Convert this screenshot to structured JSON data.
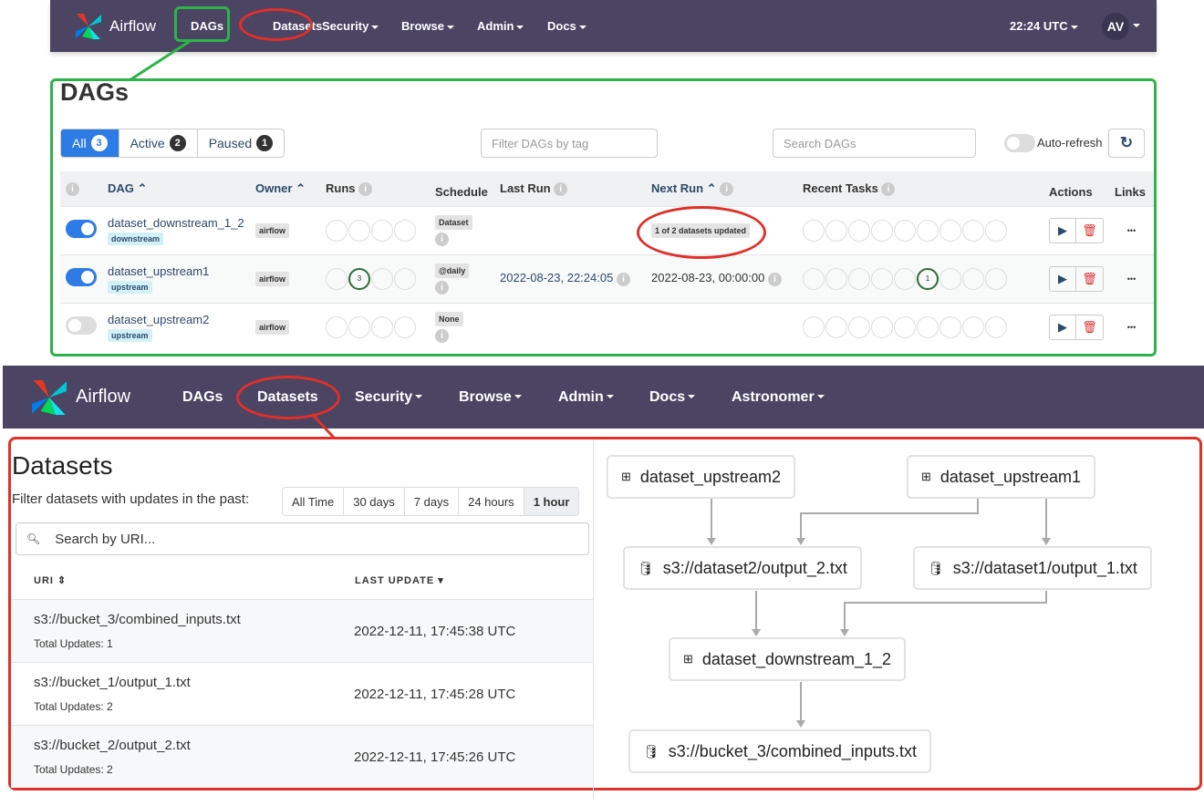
{
  "top_nav": {
    "brand": "Airflow",
    "items": [
      "DAGs",
      "Datasets",
      "Security",
      "Browse",
      "Admin",
      "Docs"
    ],
    "time": "22:24 UTC",
    "avatar": "AV"
  },
  "dags": {
    "title": "DAGs",
    "filters": [
      {
        "label": "All",
        "count": "3"
      },
      {
        "label": "Active",
        "count": "2"
      },
      {
        "label": "Paused",
        "count": "1"
      }
    ],
    "tag_placeholder": "Filter DAGs by tag",
    "search_placeholder": "Search DAGs",
    "auto_refresh": "Auto-refresh",
    "columns": [
      "DAG",
      "Owner",
      "Runs",
      "Schedule",
      "Last Run",
      "Next Run",
      "Recent Tasks",
      "Actions",
      "Links"
    ],
    "rows": [
      {
        "name": "dataset_downstream_1_2",
        "tag": "downstream",
        "owner": "airflow",
        "schedule": "Dataset",
        "last_run": "",
        "next_run": "1 of 2 datasets updated",
        "active": true,
        "runs_badge": "",
        "tasks_badge": ""
      },
      {
        "name": "dataset_upstream1",
        "tag": "upstream",
        "owner": "airflow",
        "schedule": "@daily",
        "last_run": "2022-08-23, 22:24:05",
        "next_run": "2022-08-23, 00:00:00",
        "active": true,
        "runs_badge": "3",
        "tasks_badge": "1"
      },
      {
        "name": "dataset_upstream2",
        "tag": "upstream",
        "owner": "airflow",
        "schedule": "None",
        "last_run": "",
        "next_run": "",
        "active": false,
        "runs_badge": "",
        "tasks_badge": ""
      }
    ],
    "more": "•••"
  },
  "second_nav": {
    "brand": "Airflow",
    "items": [
      "DAGs",
      "Datasets",
      "Security",
      "Browse",
      "Admin",
      "Docs",
      "Astronomer"
    ]
  },
  "datasets": {
    "title": "Datasets",
    "filter_label": "Filter datasets with updates in the past:",
    "time_filters": [
      "All Time",
      "30 days",
      "7 days",
      "24 hours",
      "1 hour"
    ],
    "search_placeholder": "Search by URI...",
    "columns": [
      "URI",
      "LAST UPDATE"
    ],
    "rows": [
      {
        "uri": "s3://bucket_3/combined_inputs.txt",
        "updates": "Total Updates: 1",
        "last_update": "2022-12-11, 17:45:38 UTC"
      },
      {
        "uri": "s3://bucket_1/output_1.txt",
        "updates": "Total Updates: 2",
        "last_update": "2022-12-11, 17:45:28 UTC"
      },
      {
        "uri": "s3://bucket_2/output_2.txt",
        "updates": "Total Updates: 2",
        "last_update": "2022-12-11, 17:45:26 UTC"
      }
    ],
    "graph": {
      "nodes": [
        "dataset_upstream2",
        "dataset_upstream1",
        "s3://dataset2/output_2.txt",
        "s3://dataset1/output_1.txt",
        "dataset_downstream_1_2",
        "s3://bucket_3/combined_inputs.txt"
      ]
    }
  },
  "colors": {
    "nav": "#4b4463",
    "primary": "#2d7be4",
    "success": "#2e6b3b",
    "highlight_green": "#2db34a",
    "highlight_red": "#e0302a"
  }
}
